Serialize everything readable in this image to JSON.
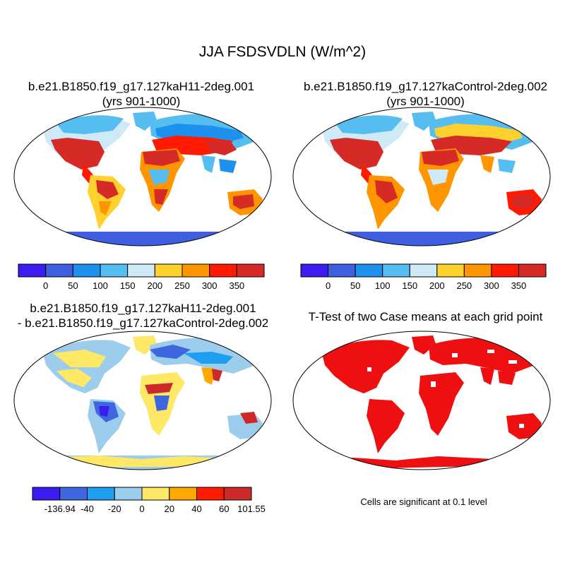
{
  "figure": {
    "title": "JJA FSDSVDLN (W/m^2)"
  },
  "panels": [
    {
      "id": "case",
      "title_line1": "b.e21.B1850.f19_g17.127kaH11-2deg.001",
      "title_line2": "(yrs 901-1000)"
    },
    {
      "id": "control",
      "title_line1": "b.e21.B1850.f19_g17.127kaControl-2deg.002",
      "title_line2": "(yrs 901-1000)"
    },
    {
      "id": "difference",
      "title_line1": "b.e21.B1850.f19_g17.127kaH11-2deg.001",
      "title_line2": "- b.e21.B1850.f19_g17.127kaControl-2deg.002"
    },
    {
      "id": "ttest",
      "title_line1": "T-Test of two Case means at each grid point",
      "note": "Cells are significant at 0.1 level"
    }
  ],
  "colorbars": {
    "absolute": {
      "colors": [
        "#3b1df2",
        "#3e5fe0",
        "#1e90ee",
        "#55bdf0",
        "#cfeaf7",
        "#ffd12f",
        "#ff9600",
        "#ff1a00",
        "#d62a26"
      ],
      "labels": [
        "0",
        "50",
        "100",
        "150",
        "200",
        "250",
        "300",
        "350"
      ]
    },
    "difference": {
      "colors": [
        "#3b1df2",
        "#3e66de",
        "#1e9ef0",
        "#9ccdec",
        "#ffe866",
        "#ffa800",
        "#ff1a00",
        "#cc2a2a"
      ],
      "labels": [
        "-136.94",
        "-40",
        "-20",
        "0",
        "20",
        "40",
        "60",
        "101.55"
      ]
    }
  },
  "map_colors": {
    "ocean": "#ffffff",
    "coast": "#000000",
    "significant": "#ee1010"
  }
}
